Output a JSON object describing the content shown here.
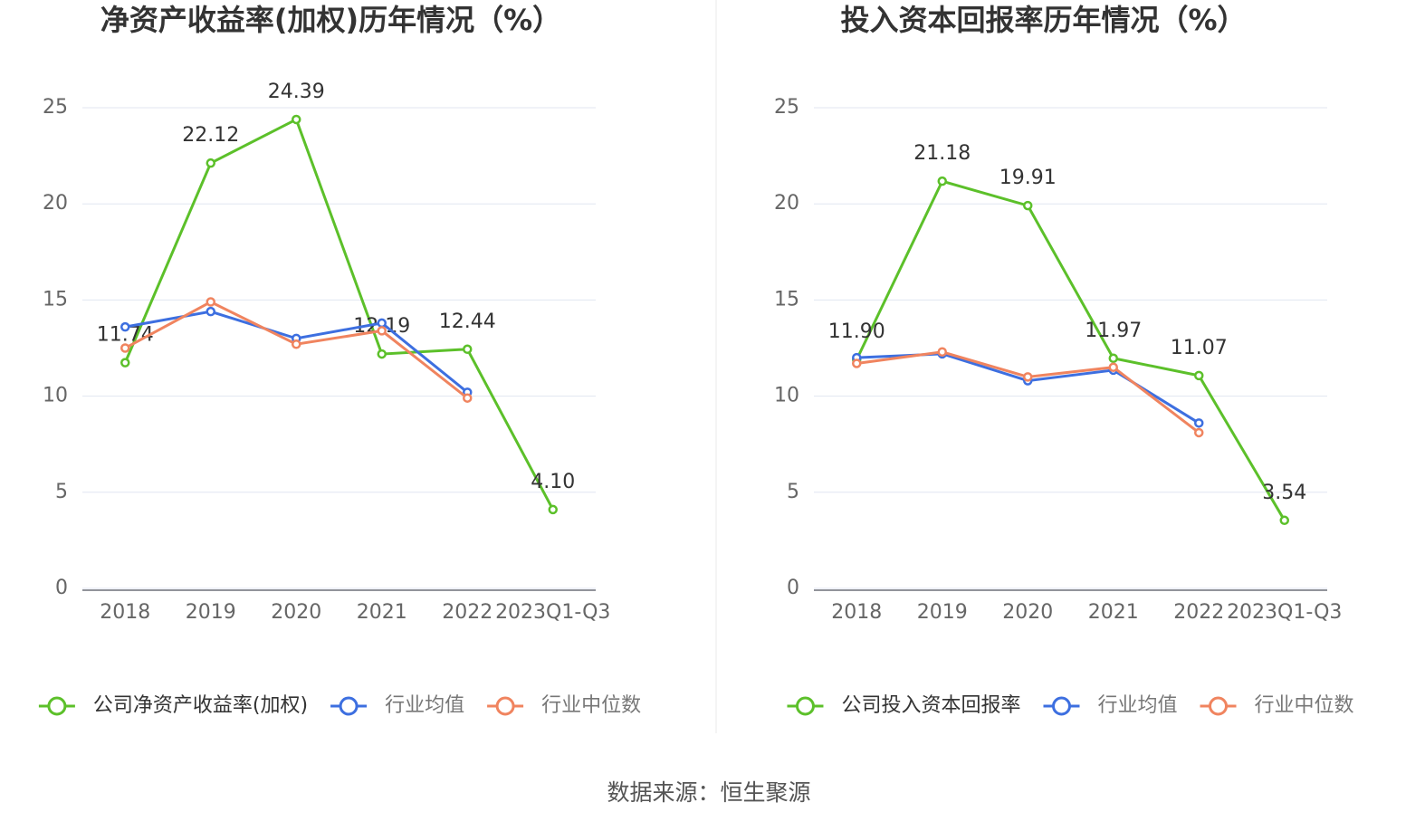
{
  "chart_data": [
    {
      "type": "line",
      "title": "净资产收益率(加权)历年情况（%）",
      "categories": [
        "2018",
        "2019",
        "2020",
        "2021",
        "2022",
        "2023Q1-Q3"
      ],
      "series": [
        {
          "name": "公司净资产收益率(加权)",
          "color": "#5cc02a",
          "values": [
            11.74,
            22.12,
            24.39,
            12.19,
            12.44,
            4.1
          ],
          "value_labels": [
            "11.74",
            "22.12",
            "24.39",
            "12.19",
            "12.44",
            "4.10"
          ]
        },
        {
          "name": "行业均值",
          "color": "#3d6fe0",
          "values": [
            13.6,
            14.4,
            13.0,
            13.8,
            10.2,
            null
          ]
        },
        {
          "name": "行业中位数",
          "color": "#f0845f",
          "values": [
            12.5,
            14.9,
            12.7,
            13.4,
            9.9,
            null
          ]
        }
      ],
      "ylim": [
        0,
        25
      ],
      "yticks": [
        0,
        5,
        10,
        15,
        20,
        25
      ],
      "grid": true
    },
    {
      "type": "line",
      "title": "投入资本回报率历年情况（%）",
      "categories": [
        "2018",
        "2019",
        "2020",
        "2021",
        "2022",
        "2023Q1-Q3"
      ],
      "series": [
        {
          "name": "公司投入资本回报率",
          "color": "#5cc02a",
          "values": [
            11.9,
            21.18,
            19.91,
            11.97,
            11.07,
            3.54
          ],
          "value_labels": [
            "11.90",
            "21.18",
            "19.91",
            "11.97",
            "11.07",
            "3.54"
          ]
        },
        {
          "name": "行业均值",
          "color": "#3d6fe0",
          "values": [
            12.0,
            12.2,
            10.8,
            11.35,
            8.6,
            null
          ]
        },
        {
          "name": "行业中位数",
          "color": "#f0845f",
          "values": [
            11.7,
            12.3,
            11.0,
            11.5,
            8.1,
            null
          ]
        }
      ],
      "ylim": [
        0,
        25
      ],
      "yticks": [
        0,
        5,
        10,
        15,
        20,
        25
      ],
      "grid": true
    }
  ],
  "source": "数据来源：恒生聚源"
}
